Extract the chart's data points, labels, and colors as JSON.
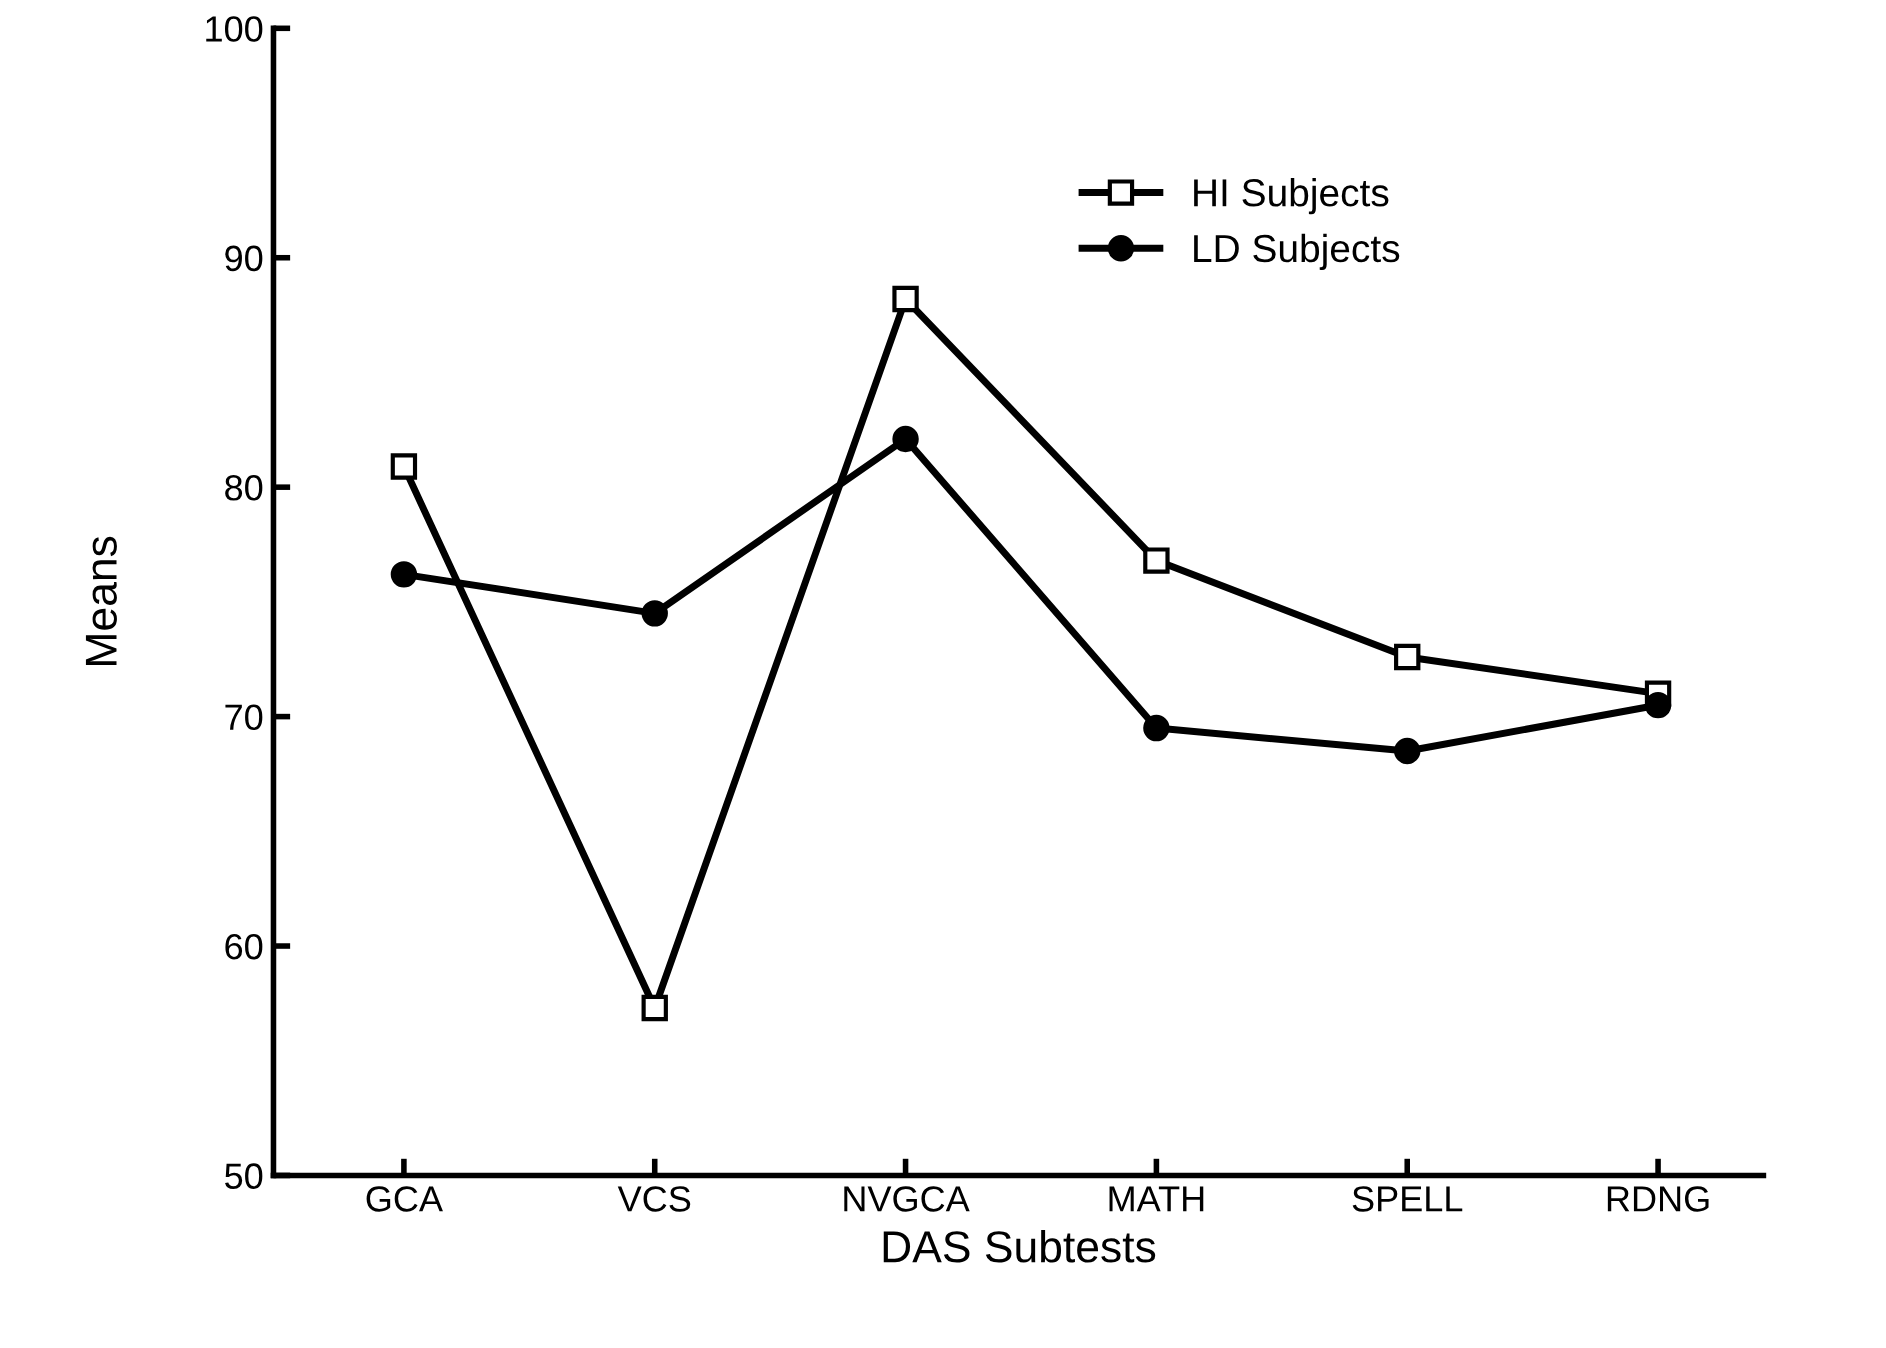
{
  "chart_data": {
    "type": "line",
    "xlabel": "DAS Subtests",
    "ylabel": "Means",
    "categories": [
      "GCA",
      "VCS",
      "NVGCA",
      "MATH",
      "SPELL",
      "RDNG"
    ],
    "series": [
      {
        "name": "HI Subjects",
        "color": "#000000",
        "marker": "square",
        "values": [
          80.9,
          57.3,
          88.2,
          76.8,
          72.6,
          71.0
        ]
      },
      {
        "name": "LD Subjects",
        "color": "#000000",
        "marker": "circle",
        "values": [
          76.2,
          74.5,
          82.1,
          69.5,
          68.5,
          70.5
        ]
      }
    ],
    "ylim": [
      50,
      100
    ],
    "yticks": [
      50,
      60,
      70,
      80,
      90,
      100
    ],
    "grid": false,
    "legend": "top right",
    "line_style": "solid"
  }
}
